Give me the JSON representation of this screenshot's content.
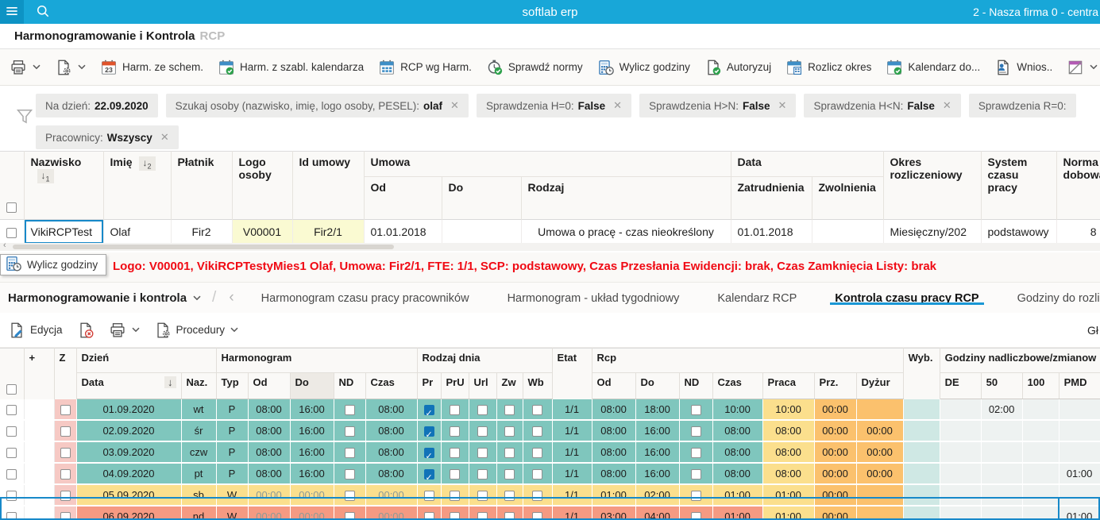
{
  "topbar": {
    "title": "softlab erp",
    "company": "2 - Nasza firma 0 - centra"
  },
  "app_header": {
    "title": "Harmonogramowanie i Kontrola",
    "suffix": "RCP"
  },
  "toolbar1": {
    "items": [
      {
        "name": "print-button",
        "icon": "printer",
        "label": "",
        "caret": true
      },
      {
        "name": "document-settings-button",
        "icon": "doc-gear",
        "label": "",
        "caret": true
      },
      {
        "name": "harm-ze-schem-button",
        "icon": "calendar-23",
        "label": "Harm. ze schem.",
        "caret": false
      },
      {
        "name": "harm-z-szabl-kalendarza-button",
        "icon": "calendar-check",
        "label": "Harm. z szabl. kalendarza",
        "caret": false
      },
      {
        "name": "rcp-wg-harm-button",
        "icon": "calendar-grid",
        "label": "RCP wg Harm.",
        "caret": false
      },
      {
        "name": "sprawdz-normy-button",
        "icon": "stopwatch-check",
        "label": "Sprawdź normy",
        "caret": false
      },
      {
        "name": "wylicz-godziny-button",
        "icon": "calculator-clock",
        "label": "Wylicz godziny",
        "caret": false
      },
      {
        "name": "autoryzuj-button",
        "icon": "document-check",
        "label": "Autoryzuj",
        "caret": false
      },
      {
        "name": "rozlicz-okres-button",
        "icon": "calendar-calculator",
        "label": "Rozlicz okres",
        "caret": false
      },
      {
        "name": "kalendarz-do-button",
        "icon": "calendar-check",
        "label": "Kalendarz do...",
        "caret": false
      },
      {
        "name": "wnioski-button",
        "icon": "person-document",
        "label": "Wnios..",
        "caret": false
      },
      {
        "name": "notes-button",
        "icon": "note-slash",
        "label": "",
        "caret": true
      }
    ]
  },
  "filters": {
    "row1": [
      {
        "label": "Na dzień:",
        "value": "22.09.2020",
        "closable": false
      },
      {
        "label": "Szukaj osoby (nazwisko, imię, logo osoby, PESEL):",
        "value": "olaf",
        "closable": true
      },
      {
        "label": "Sprawdzenia H=0:",
        "value": "False",
        "closable": true
      },
      {
        "label": "Sprawdzenia H>N:",
        "value": "False",
        "closable": true
      },
      {
        "label": "Sprawdzenia H<N:",
        "value": "False",
        "closable": true
      },
      {
        "label": "Sprawdzenia R=0:",
        "value": "",
        "closable": false
      }
    ],
    "row2": [
      {
        "label": "Pracownicy:",
        "value": "Wszyscy",
        "closable": true
      }
    ]
  },
  "persons_table": {
    "groups": {
      "umowa": "Umowa",
      "data": "Data"
    },
    "headers": {
      "nazwisko": "Nazwisko",
      "imie": "Imię",
      "platnik": "Płatnik",
      "logo": "Logo osoby",
      "id_umowy": "Id umowy",
      "od": "Od",
      "do": "Do",
      "rodzaj": "Rodzaj",
      "zatrudnienia": "Zatrudnienia",
      "zwolnienia": "Zwolnienia",
      "okres": "Okres rozliczeniowy",
      "system": "System czasu pracy",
      "norma": "Norma dobowa"
    },
    "sort1": "1",
    "sort2": "2",
    "row": {
      "nazwisko": "VikiRCPTest",
      "imie": "Olaf",
      "platnik": "Fir2",
      "logo": "V00001",
      "id_umowy": "Fir2/1",
      "od": "01.01.2018",
      "do": "",
      "rodzaj": "Umowa o pracę - czas nieokreślony",
      "zatrudnienia": "01.01.2018",
      "zwolnienia": "",
      "okres": "Miesięczny/202",
      "system": "podstawowy",
      "norma": "8"
    }
  },
  "status": {
    "tooltip": "Wylicz godziny",
    "line": "Logo: V00001, VikiRCPTestyMies1 Olaf, Umowa: Fir2/1, FTE: 1/1, SCP: podstawowy, Czas Przesłania Ewidencji: brak, Czas Zamknięcia Listy: brak"
  },
  "tabs": {
    "context_label": "Harmonogramowanie i kontrola",
    "items": [
      "Harmonogram czasu pracy pracowników",
      "Harmonogram - układ tygodniowy",
      "Kalendarz RCP",
      "Kontrola czasu pracy RCP",
      "Godziny do rozliczenia"
    ],
    "active_index": 3
  },
  "toolbar2": {
    "items": [
      {
        "name": "edycja-button",
        "icon": "edit-document",
        "label": "Edycja",
        "caret": false
      },
      {
        "name": "delete-button",
        "icon": "document-delete",
        "label": "",
        "caret": false
      },
      {
        "name": "print-button",
        "icon": "printer",
        "label": "",
        "caret": true
      },
      {
        "name": "procedury-button",
        "icon": "doc-gear",
        "label": "Procedury",
        "caret": true
      }
    ],
    "right_label": "Gł"
  },
  "grid": {
    "plus": "+",
    "z": "Z",
    "groups": {
      "dzien": "Dzień",
      "harmonogram": "Harmonogram",
      "rodzaj_dnia": "Rodzaj dnia",
      "etat": "Etat",
      "rcp": "Rcp",
      "wyb": "Wyb.",
      "nadliczbowe": "Godziny nadliczbowe/zmianow"
    },
    "cols": {
      "data": "Data",
      "naz": "Naz.",
      "typ": "Typ",
      "od": "Od",
      "do": "Do",
      "nd": "ND",
      "czas": "Czas",
      "pr": "Pr",
      "pru": "PrU",
      "url": "Url",
      "zw": "Zw",
      "wb": "Wb",
      "praca": "Praca",
      "prz": "Prz.",
      "dyzur": "Dyżur",
      "de": "DE",
      "p50": "50",
      "p100": "100",
      "pmd": "PMD"
    },
    "rows": [
      {
        "date": "01.09.2020",
        "day": "wt",
        "typ": "P",
        "h_od": "08:00",
        "h_do": "16:00",
        "h_czas": "08:00",
        "pr": true,
        "etat": "1/1",
        "r_od": "08:00",
        "r_do": "18:00",
        "r_czas": "10:00",
        "praca": "10:00",
        "prz": "00:00",
        "dyzur": "",
        "de": "",
        "p50": "02:00",
        "p100": "",
        "pmd": "",
        "tone": "work",
        "muted": false,
        "selected": false
      },
      {
        "date": "02.09.2020",
        "day": "śr",
        "typ": "P",
        "h_od": "08:00",
        "h_do": "16:00",
        "h_czas": "08:00",
        "pr": true,
        "etat": "1/1",
        "r_od": "08:00",
        "r_do": "16:00",
        "r_czas": "08:00",
        "praca": "08:00",
        "prz": "00:00",
        "dyzur": "00:00",
        "de": "",
        "p50": "",
        "p100": "",
        "pmd": "",
        "tone": "work",
        "muted": false,
        "selected": false
      },
      {
        "date": "03.09.2020",
        "day": "czw",
        "typ": "P",
        "h_od": "08:00",
        "h_do": "16:00",
        "h_czas": "08:00",
        "pr": true,
        "etat": "1/1",
        "r_od": "08:00",
        "r_do": "16:00",
        "r_czas": "08:00",
        "praca": "08:00",
        "prz": "00:00",
        "dyzur": "00:00",
        "de": "",
        "p50": "",
        "p100": "",
        "pmd": "",
        "tone": "work",
        "muted": false,
        "selected": false
      },
      {
        "date": "04.09.2020",
        "day": "pt",
        "typ": "P",
        "h_od": "08:00",
        "h_do": "16:00",
        "h_czas": "08:00",
        "pr": true,
        "etat": "1/1",
        "r_od": "08:00",
        "r_do": "16:00",
        "r_czas": "08:00",
        "praca": "08:00",
        "prz": "00:00",
        "dyzur": "00:00",
        "de": "",
        "p50": "",
        "p100": "",
        "pmd": "01:00",
        "tone": "work",
        "muted": false,
        "selected": false
      },
      {
        "date": "05.09.2020",
        "day": "sb",
        "typ": "W",
        "h_od": "00:00",
        "h_do": "00:00",
        "h_czas": "00:00",
        "pr": false,
        "etat": "1/1",
        "r_od": "01:00",
        "r_do": "02:00",
        "r_czas": "01:00",
        "praca": "01:00",
        "prz": "00:00",
        "dyzur": "",
        "de": "",
        "p50": "",
        "p100": "",
        "pmd": "",
        "tone": "saturday",
        "muted": true,
        "selected": false
      },
      {
        "date": "06.09.2020",
        "day": "nd",
        "typ": "W",
        "h_od": "00:00",
        "h_do": "00:00",
        "h_czas": "00:00",
        "pr": false,
        "etat": "1/1",
        "r_od": "03:00",
        "r_do": "04:00",
        "r_czas": "01:00",
        "praca": "01:00",
        "prz": "00:00",
        "dyzur": "",
        "de": "",
        "p50": "",
        "p100": "",
        "pmd": "01:00",
        "tone": "sunday",
        "muted": true,
        "selected": true
      }
    ]
  },
  "icons": {
    "close": "✕",
    "sort_desc": "↓",
    "back_chevron": "‹",
    "slash": "/",
    "scroll_left": "‹",
    "splitter_dots": "⋯"
  },
  "colors": {
    "topbar": "#18a7d8",
    "accent": "#1789c9",
    "status_red": "#f00a14",
    "row_workday": "#7fc6bd",
    "row_saturday": "#fbdf8d",
    "row_sunday": "#f59a82",
    "col_praca": "#fbdf8d",
    "col_przerwa_dyzur": "#fbc16d",
    "col_wyb": "#cfe8e4",
    "cell_highlight": "#fafad2",
    "col_z": "#f6c9c4",
    "checkbox_checked": "#1173b8"
  }
}
